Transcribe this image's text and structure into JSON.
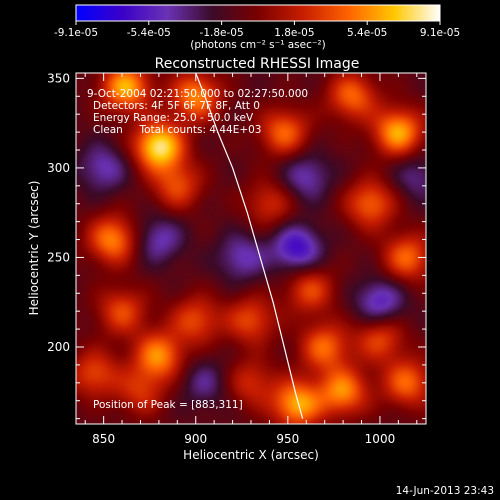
{
  "colorbar": {
    "min": -9.1e-05,
    "max": 9.1e-05,
    "tick_labels": [
      "-9.1e-05",
      "-5.4e-05",
      "-1.8e-05",
      "1.8e-05",
      "5.4e-05",
      "9.1e-05"
    ],
    "units_label": "(photons cm⁻² s⁻¹ asec⁻²)",
    "colors": [
      "#0000ff",
      "#3a00c8",
      "#6a32b4",
      "#3c0a28",
      "#7a0000",
      "#c81e00",
      "#ff6400",
      "#ffc800",
      "#ffffff"
    ]
  },
  "chart_data": {
    "type": "heatmap",
    "title": "Reconstructed RHESSI Image",
    "xlabel": "Heliocentric X (arcsec)",
    "ylabel": "Heliocentric Y (arcsec)",
    "xlim": [
      835,
      1025
    ],
    "ylim": [
      157,
      353
    ],
    "x_ticks": [
      850,
      900,
      950,
      1000
    ],
    "y_ticks": [
      200,
      250,
      300,
      350
    ],
    "annotations": [
      "9-Oct-2004 02:21:50.000 to 02:27:50.000",
      "Detectors: 4F 5F 6F 7F 8F, Att 0",
      "Energy Range: 25.0 - 50.0 keV",
      "Clean     Total counts: 4.44E+03"
    ],
    "peak_label": "Position of Peak = [883,311]",
    "peak": [
      883,
      311
    ],
    "limb_curve": [
      [
        900,
        353
      ],
      [
        905,
        340
      ],
      [
        912,
        320
      ],
      [
        920,
        300
      ],
      [
        928,
        275
      ],
      [
        935,
        250
      ],
      [
        942,
        225
      ],
      [
        948,
        200
      ],
      [
        954,
        175
      ],
      [
        958,
        160
      ]
    ],
    "blobs": [
      [
        880,
        312,
        1.0
      ],
      [
        862,
        345,
        0.8
      ],
      [
        900,
        340,
        0.7
      ],
      [
        948,
        320,
        0.6
      ],
      [
        985,
        340,
        0.6
      ],
      [
        1010,
        320,
        0.8
      ],
      [
        995,
        280,
        0.6
      ],
      [
        1015,
        250,
        0.6
      ],
      [
        855,
        260,
        0.7
      ],
      [
        890,
        290,
        0.5
      ],
      [
        940,
        280,
        0.4
      ],
      [
        925,
        250,
        -0.4
      ],
      [
        962,
        232,
        0.5
      ],
      [
        860,
        220,
        0.5
      ],
      [
        900,
        215,
        0.5
      ],
      [
        880,
        195,
        0.7
      ],
      [
        930,
        215,
        0.5
      ],
      [
        970,
        200,
        0.6
      ],
      [
        1000,
        205,
        0.5
      ],
      [
        980,
        175,
        0.7
      ],
      [
        955,
        168,
        0.8
      ],
      [
        1015,
        180,
        0.6
      ],
      [
        845,
        185,
        0.5
      ],
      [
        870,
        175,
        0.4
      ],
      [
        930,
        180,
        0.4
      ],
      [
        850,
        300,
        -0.4
      ],
      [
        1000,
        225,
        -0.5
      ],
      [
        955,
        255,
        -0.6
      ],
      [
        960,
        295,
        -0.4
      ],
      [
        880,
        260,
        -0.4
      ],
      [
        905,
        180,
        -0.3
      ],
      [
        1020,
        295,
        -0.3
      ]
    ]
  },
  "timestamp": "14-Jun-2013 23:43"
}
